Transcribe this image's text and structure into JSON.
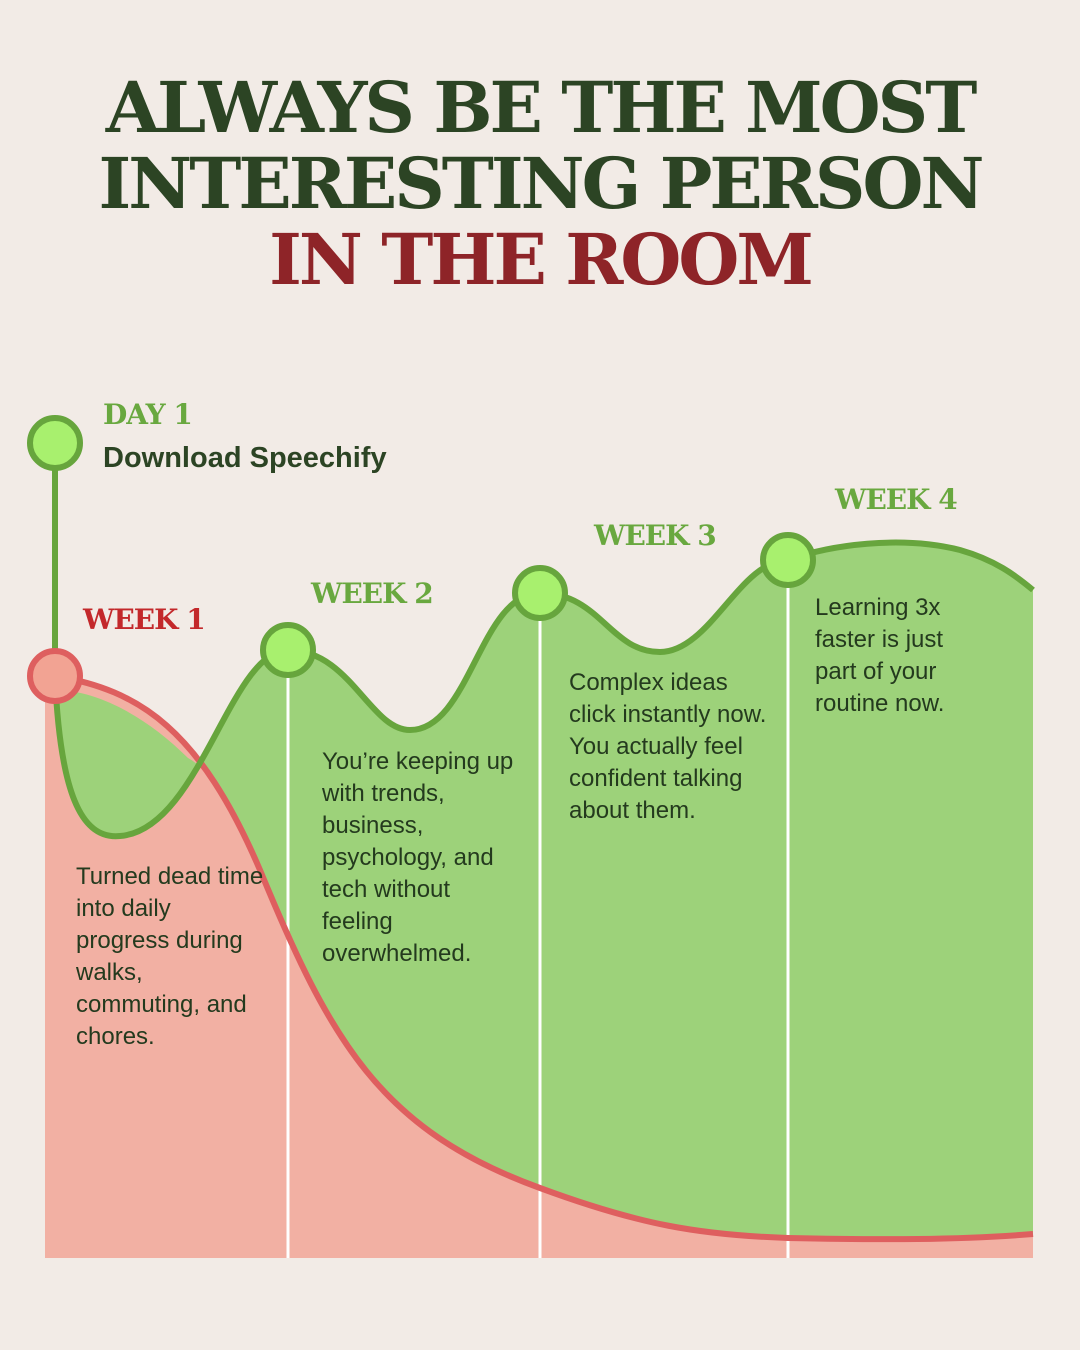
{
  "title": {
    "line1": "ALWAYS BE THE MOST",
    "line2": "INTERESTING PERSON",
    "line3": "IN THE ROOM"
  },
  "milestones": {
    "day1": {
      "label": "DAY 1",
      "desc": "Download Speechify"
    },
    "week1": {
      "label": "WEEK 1",
      "desc": "Turned dead time into daily progress during walks, commuting, and chores."
    },
    "week2": {
      "label": "WEEK 2",
      "desc": "You’re keeping up with trends, business, psychology, and tech without feeling overwhelmed."
    },
    "week3": {
      "label": "WEEK 3",
      "desc": "Complex ideas click instantly now. You actually feel confident talking about them."
    },
    "week4": {
      "label": "WEEK 4",
      "desc": "Learning 3x faster is just part of your routine now."
    }
  },
  "colors": {
    "background": "#f2ebe6",
    "title_dark": "#2c4424",
    "title_red": "#8e2428",
    "green_line": "#67a53d",
    "green_fill": "#9dd27a",
    "green_dot": "#a8f06e",
    "red_line": "#de5f5f",
    "red_fill": "#f2b0a3",
    "red_dot": "#f2a393"
  }
}
